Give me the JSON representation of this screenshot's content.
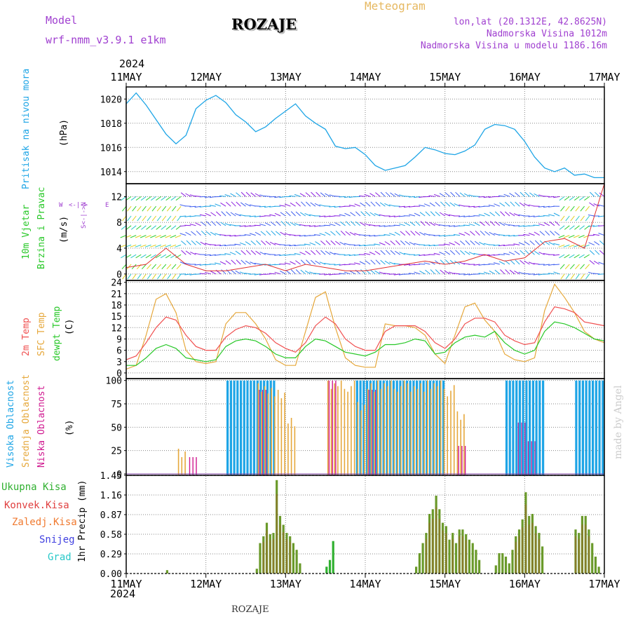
{
  "header": {
    "model_label": "Model",
    "model_name": "wrf-nmm_v3.9.1 e1km",
    "station": "ROZAJE",
    "meteogram": "Meteogram",
    "coords": "lon,lat (20.1312E, 42.8625N)",
    "elevation": "Nadmorska Visina 1012m",
    "model_elevation": "Nadmorska Visina u modelu 1186.16m",
    "bottom_station": "ROZAJE",
    "credit": "made by Angel"
  },
  "colors": {
    "pressure": "#1ea5e6",
    "temp2m": "#f05050",
    "sfc": "#e6a83c",
    "dew": "#28c828",
    "high_cloud": "#1ea5e6",
    "mid_cloud": "#e6a83c",
    "low_cloud": "#d01a90",
    "total_precip": "#30b030",
    "conv_precip": "#e04040",
    "frozen": "#f07a30",
    "snow": "#4040e0",
    "hail": "#28c8c8",
    "purple_text": "#a040d0",
    "wind_speed_line": "#e03030"
  },
  "time_axis": {
    "year": "2024",
    "labels": [
      "11MAY",
      "12MAY",
      "13MAY",
      "14MAY",
      "15MAY",
      "16MAY",
      "17MAY"
    ]
  },
  "panels": {
    "pressure": {
      "title": "Pritisak na nivou mora",
      "unit": "(hPa)",
      "ticks": [
        "1020",
        "1018",
        "1016",
        "1014"
      ]
    },
    "wind": {
      "title_line1": "10m Vjetar",
      "title_line2": "Brzina i Pravac",
      "unit": "(m/s)",
      "ticks": [
        "12",
        "8",
        "4",
        "0"
      ],
      "compass": [
        "W",
        "<-|->",
        "E"
      ],
      "compass_ns": "S<-|->N"
    },
    "temperature": {
      "title_2m": "2m Temp",
      "title_sfc": "SFC Temp",
      "title_dew": "dewpt Temp",
      "unit": "(C)",
      "ticks": [
        "24",
        "21",
        "18",
        "15",
        "12",
        "9",
        "6",
        "3",
        "0"
      ]
    },
    "clouds": {
      "title_high": "Visoka Oblacnost",
      "title_mid": "Srednja Oblacnost",
      "title_low": "Niska Oblacnost",
      "unit": "(%)",
      "ticks": [
        "100",
        "75",
        "50",
        "25",
        "0"
      ]
    },
    "precip": {
      "legend": [
        "Ukupna Kisa",
        "Konvek.Kisa",
        "Zaledj.Kisa",
        "Snijeg",
        "Grad"
      ],
      "ylabel": "1hr Precip (mm)",
      "ticks": [
        "1.45",
        "1.16",
        "0.87",
        "0.58",
        "0.29",
        "0.00"
      ]
    }
  },
  "chart_data": [
    {
      "type": "line",
      "title": "Pritisak na nivou mora",
      "ylabel": "(hPa)",
      "ylim": [
        1013,
        1021
      ],
      "x_hours": [
        0,
        3,
        6,
        9,
        12,
        15,
        18,
        21,
        24,
        27,
        30,
        33,
        36,
        39,
        42,
        45,
        48,
        51,
        54,
        57,
        60,
        63,
        66,
        69,
        72,
        75,
        78,
        81,
        84,
        87,
        90,
        93,
        96,
        99,
        102,
        105,
        108,
        111,
        114,
        117,
        120,
        123,
        126,
        129,
        132,
        135,
        138,
        141,
        144
      ],
      "series": [
        {
          "values": [
            1019.6,
            1020.5,
            1019.5,
            1018.3,
            1017.1,
            1016.3,
            1017.0,
            1019.2,
            1019.9,
            1020.3,
            1019.7,
            1018.7,
            1018.1,
            1017.3,
            1017.7,
            1018.4,
            1019.0,
            1019.6,
            1018.6,
            1018.0,
            1017.5,
            1016.1,
            1015.9,
            1016.0,
            1015.4,
            1014.5,
            1014.1,
            1014.3,
            1014.5,
            1015.2,
            1016.0,
            1015.8,
            1015.5,
            1015.4,
            1015.7,
            1016.2,
            1017.5,
            1017.9,
            1017.8,
            1017.5,
            1016.5,
            1015.2,
            1014.3,
            1014.0,
            1014.3,
            1013.7,
            1013.8,
            1013.5,
            1013.5
          ]
        }
      ],
      "grid": true
    },
    {
      "type": "line",
      "title": "10m Vjetar Brzina i Pravac",
      "ylabel": "(m/s)",
      "ylim": [
        -1,
        14
      ],
      "x_hours": [
        0,
        6,
        12,
        18,
        24,
        30,
        36,
        42,
        48,
        54,
        60,
        66,
        72,
        78,
        84,
        90,
        96,
        102,
        108,
        114,
        120,
        126,
        132,
        138,
        144
      ],
      "series": [
        {
          "name": "10m Vjetar",
          "values": [
            1.0,
            1.5,
            4.0,
            1.5,
            0.5,
            0.5,
            1.0,
            1.5,
            0.5,
            1.5,
            1.0,
            0.5,
            0.5,
            1.0,
            1.5,
            2.0,
            1.5,
            2.0,
            3.0,
            2.0,
            2.5,
            5.0,
            5.5,
            4.0,
            14.0
          ]
        }
      ],
      "grid": true
    },
    {
      "type": "line",
      "title": "Temperature",
      "ylabel": "(C)",
      "ylim": [
        -1.5,
        24.5
      ],
      "x_hours": [
        0,
        3,
        6,
        9,
        12,
        15,
        18,
        21,
        24,
        27,
        30,
        33,
        36,
        39,
        42,
        45,
        48,
        51,
        54,
        57,
        60,
        63,
        66,
        69,
        72,
        75,
        78,
        81,
        84,
        87,
        90,
        93,
        96,
        99,
        102,
        105,
        108,
        111,
        114,
        117,
        120,
        123,
        126,
        129,
        132,
        135,
        138,
        141,
        144
      ],
      "series": [
        {
          "name": "2m Temp",
          "values": [
            3.5,
            4.5,
            8.0,
            12.0,
            14.8,
            14.0,
            10.0,
            7.0,
            6.0,
            6.0,
            9.5,
            11.5,
            12.5,
            12.0,
            10.5,
            8.0,
            6.5,
            5.5,
            8.0,
            12.5,
            14.8,
            13.0,
            9.0,
            7.0,
            6.0,
            6.0,
            11.0,
            12.5,
            12.5,
            12.5,
            11.0,
            8.0,
            6.5,
            9.0,
            13.0,
            14.5,
            14.5,
            13.5,
            10.0,
            8.5,
            7.5,
            8.0,
            13.5,
            17.5,
            17.0,
            16.0,
            13.5,
            13.0,
            12.5
          ]
        },
        {
          "name": "SFC Temp",
          "values": [
            1.0,
            2.0,
            10.0,
            19.5,
            21.0,
            16.0,
            6.0,
            3.0,
            2.5,
            3.0,
            13.0,
            16.0,
            16.0,
            13.0,
            9.0,
            3.5,
            2.0,
            2.0,
            11.0,
            20.0,
            21.5,
            12.0,
            4.0,
            2.0,
            1.5,
            1.5,
            13.0,
            12.5,
            12.5,
            12.0,
            10.0,
            5.0,
            2.5,
            10.0,
            17.5,
            18.5,
            14.0,
            11.0,
            5.0,
            3.5,
            3.0,
            4.0,
            16.5,
            23.5,
            20.0,
            16.0,
            11.0,
            9.0,
            8.0
          ]
        },
        {
          "name": "dewpt Temp",
          "values": [
            2.0,
            2.0,
            4.0,
            6.5,
            7.5,
            6.5,
            4.0,
            3.5,
            3.0,
            3.5,
            7.0,
            8.5,
            9.0,
            8.5,
            7.0,
            5.0,
            4.0,
            4.0,
            7.0,
            9.0,
            8.5,
            7.0,
            5.5,
            5.0,
            4.5,
            5.5,
            7.5,
            7.5,
            8.0,
            9.0,
            8.5,
            5.0,
            5.5,
            8.0,
            9.5,
            10.0,
            9.5,
            11.0,
            8.0,
            6.0,
            5.0,
            6.0,
            11.0,
            13.5,
            13.0,
            12.0,
            10.5,
            9.0,
            8.5
          ]
        }
      ],
      "grid": true
    },
    {
      "type": "bar",
      "title": "Oblacnost",
      "ylabel": "(%)",
      "ylim": [
        0,
        100
      ],
      "x_hours": [
        0,
        3,
        6,
        9,
        12,
        15,
        18,
        21,
        24,
        27,
        30,
        33,
        36,
        39,
        42,
        45,
        48,
        51,
        54,
        57,
        60,
        63,
        66,
        69,
        72,
        75,
        78,
        81,
        84,
        87,
        90,
        93,
        96,
        99,
        102,
        105,
        108,
        111,
        114,
        117,
        120,
        123,
        126,
        129,
        132,
        135,
        138,
        141,
        144
      ],
      "series": [
        {
          "name": "Visoka Oblacnost",
          "values": [
            0,
            0,
            0,
            0,
            0,
            0,
            0,
            0,
            0,
            0,
            100,
            100,
            100,
            100,
            100,
            0,
            0,
            0,
            0,
            0,
            0,
            0,
            0,
            100,
            100,
            100,
            100,
            100,
            100,
            100,
            100,
            100,
            0,
            0,
            0,
            0,
            0,
            0,
            100,
            100,
            100,
            100,
            0,
            0,
            0,
            100,
            100,
            100,
            100
          ]
        },
        {
          "name": "Srednja Oblacnost",
          "values": [
            0,
            0,
            0,
            0,
            0,
            27,
            0,
            0,
            0,
            0,
            0,
            0,
            0,
            100,
            95,
            90,
            60,
            0,
            0,
            0,
            100,
            100,
            100,
            80,
            100,
            100,
            100,
            100,
            100,
            100,
            100,
            100,
            95,
            70,
            0,
            0,
            0,
            0,
            0,
            0,
            0,
            0,
            0,
            0,
            0,
            0,
            0,
            0,
            0
          ]
        },
        {
          "name": "Niska Oblacnost",
          "values": [
            0,
            0,
            0,
            0,
            0,
            0,
            18,
            0,
            0,
            0,
            0,
            0,
            0,
            90,
            0,
            0,
            0,
            0,
            0,
            0,
            100,
            0,
            0,
            0,
            90,
            0,
            0,
            0,
            0,
            0,
            0,
            0,
            0,
            30,
            0,
            0,
            0,
            0,
            0,
            55,
            35,
            0,
            0,
            0,
            0,
            0,
            0,
            0,
            0
          ]
        }
      ],
      "grid": true
    },
    {
      "type": "bar",
      "title": "1hr Precip",
      "ylabel": "1hr Precip (mm)",
      "ylim": [
        0,
        1.45
      ],
      "x_hours": [
        0,
        3,
        6,
        9,
        12,
        15,
        18,
        21,
        24,
        27,
        30,
        33,
        36,
        39,
        42,
        45,
        48,
        51,
        54,
        57,
        60,
        63,
        66,
        69,
        72,
        75,
        78,
        81,
        84,
        87,
        90,
        93,
        96,
        99,
        102,
        105,
        108,
        111,
        114,
        117,
        120,
        123,
        126,
        129,
        132,
        135,
        138,
        141,
        144
      ],
      "series": [
        {
          "name": "Ukupna Kisa",
          "values": [
            0,
            0,
            0,
            0,
            0,
            0.05,
            0,
            0,
            0,
            0,
            0,
            0,
            0,
            0,
            0,
            0,
            0,
            0,
            0,
            0,
            0,
            0,
            0,
            0,
            0,
            0,
            0,
            0,
            0,
            0,
            0,
            0,
            0,
            0,
            0,
            0,
            0,
            0,
            0,
            0,
            0,
            0,
            0,
            0,
            0,
            0,
            0,
            0,
            0
          ]
        },
        {
          "name": "Ukupna Kisa",
          "values": [
            0,
            0,
            0,
            0,
            0,
            0,
            0,
            0,
            0,
            0.05,
            0,
            0.45,
            0.75,
            0.58,
            1.35,
            0.85,
            0.6,
            0.45,
            0.1,
            0,
            0,
            0,
            0,
            0.12,
            0.22,
            0.48,
            0,
            0,
            0,
            0,
            0,
            0,
            0,
            0,
            0,
            0,
            0,
            0,
            0,
            0,
            0,
            0,
            0,
            0,
            0,
            0,
            0,
            0,
            0
          ]
        },
        {
          "name": "Ukupna Kisa",
          "values": [
            0,
            0,
            0,
            0,
            0,
            0,
            0,
            0,
            0,
            0,
            0,
            0,
            0,
            0,
            0,
            0,
            0,
            0,
            0,
            0,
            0,
            0,
            0,
            0,
            0,
            0,
            0,
            0,
            0,
            0,
            0,
            0.08,
            0.25,
            0.45,
            0.7,
            0.9,
            1.0,
            1.22,
            0.95,
            0.82,
            0.6,
            0.45,
            0.65,
            0.62,
            0.6,
            0.35,
            0.2,
            0,
            0
          ]
        },
        {
          "name": "Ukupna Kisa",
          "values": [
            0,
            0,
            0,
            0,
            0,
            0,
            0,
            0,
            0,
            0,
            0,
            0,
            0,
            0,
            0,
            0,
            0,
            0,
            0,
            0,
            0,
            0,
            0,
            0,
            0,
            0,
            0,
            0,
            0,
            0,
            0,
            0,
            0,
            0,
            0,
            0,
            0,
            0,
            0,
            0,
            0,
            0,
            0,
            0.1,
            0.3,
            0.3,
            0.25,
            0.15,
            0.35
          ]
        },
        {
          "name": "Ukupna Kisa",
          "values": [
            0,
            0,
            0,
            0,
            0,
            0,
            0,
            0,
            0,
            0,
            0,
            0,
            0,
            0,
            0,
            0,
            0,
            0,
            0,
            0,
            0,
            0,
            0,
            0,
            0,
            0,
            0,
            0,
            0,
            0,
            0,
            0,
            0,
            0,
            0,
            0,
            0,
            0,
            0,
            0,
            0,
            0,
            0,
            0,
            0,
            0,
            0,
            0,
            0
          ]
        }
      ],
      "grid": true
    }
  ],
  "precip_days": {
    "d11": [
      0.05
    ],
    "d12": [
      0.07,
      0.45,
      0.55,
      0.75,
      0.58,
      0.6,
      1.38,
      0.85,
      0.72,
      0.6,
      0.55,
      0.45,
      0.35,
      0.15
    ],
    "d13": [
      0.1,
      0.2,
      0.48
    ],
    "d14": [
      0.1,
      0.3,
      0.45,
      0.6,
      0.88,
      0.95,
      1.15,
      0.95,
      0.75,
      0.7,
      0.5,
      0.6,
      0.45,
      0.65,
      0.65,
      0.58,
      0.5,
      0.45,
      0.35,
      0.2
    ],
    "d15": [
      0.12,
      0.3,
      0.3,
      0.25,
      0.15,
      0.35,
      0.55,
      0.65,
      0.8,
      1.2,
      0.85,
      0.88,
      0.7,
      0.6,
      0.4
    ],
    "d16": [
      0.65,
      0.6,
      0.85,
      0.85,
      0.65,
      0.45,
      0.25,
      0.1
    ]
  }
}
